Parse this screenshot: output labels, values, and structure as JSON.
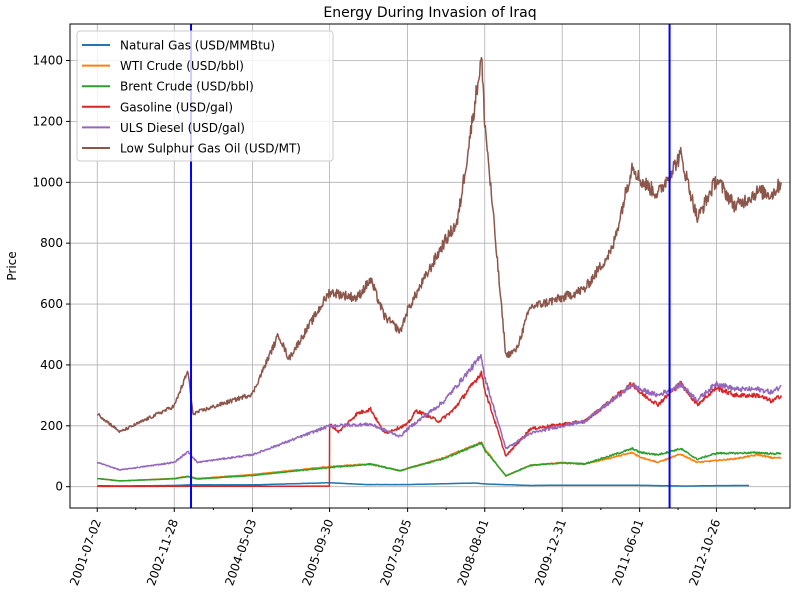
{
  "chart_data": {
    "type": "line",
    "title": "Energy During Invasion of Iraq",
    "xlabel": "",
    "ylabel": "Price",
    "ylim": [
      -70,
      1520
    ],
    "yticks": [
      0,
      200,
      400,
      600,
      800,
      1000,
      1200,
      1400
    ],
    "xdomain": [
      "2001-01-01",
      "2014-03-01"
    ],
    "xtick_labels": [
      "2001-07-02",
      "2002-11-28",
      "2004-05-03",
      "2005-09-30",
      "2007-03-05",
      "2008-08-01",
      "2009-12-31",
      "2011-06-01",
      "2012-10-26"
    ],
    "grid": true,
    "legend_position": "top-left",
    "vlines": [
      {
        "x": "2003-03-20",
        "color": "#0000ff"
      },
      {
        "x": "2011-12-18",
        "color": "#0000ff"
      }
    ],
    "series": [
      {
        "name": "Natural Gas (USD/MMBtu)",
        "color": "#1f77b4",
        "points": [
          [
            "2001-07-02",
            3
          ],
          [
            "2002-01-01",
            2.5
          ],
          [
            "2002-11-28",
            4
          ],
          [
            "2003-03-01",
            6
          ],
          [
            "2004-05-03",
            6
          ],
          [
            "2005-09-30",
            13
          ],
          [
            "2006-06-01",
            7
          ],
          [
            "2007-03-05",
            7
          ],
          [
            "2008-06-01",
            12
          ],
          [
            "2008-08-01",
            9
          ],
          [
            "2009-06-01",
            4
          ],
          [
            "2009-12-31",
            5
          ],
          [
            "2011-06-01",
            4.5
          ],
          [
            "2012-04-01",
            2
          ],
          [
            "2012-10-26",
            3.5
          ],
          [
            "2013-06-01",
            4
          ]
        ]
      },
      {
        "name": "WTI Crude (USD/bbl)",
        "color": "#ff7f0e",
        "points": [
          [
            "2001-07-02",
            27
          ],
          [
            "2001-12-01",
            19
          ],
          [
            "2002-11-28",
            27
          ],
          [
            "2003-03-01",
            35
          ],
          [
            "2003-05-01",
            27
          ],
          [
            "2004-05-03",
            40
          ],
          [
            "2005-09-30",
            66
          ],
          [
            "2006-07-01",
            75
          ],
          [
            "2007-01-15",
            52
          ],
          [
            "2007-03-05",
            60
          ],
          [
            "2007-11-01",
            95
          ],
          [
            "2008-07-10",
            145
          ],
          [
            "2008-08-01",
            125
          ],
          [
            "2008-12-20",
            35
          ],
          [
            "2009-06-01",
            70
          ],
          [
            "2009-12-31",
            79
          ],
          [
            "2010-06-01",
            75
          ],
          [
            "2011-04-15",
            112
          ],
          [
            "2011-06-01",
            98
          ],
          [
            "2011-10-01",
            80
          ],
          [
            "2012-03-01",
            107
          ],
          [
            "2012-06-20",
            80
          ],
          [
            "2012-10-26",
            86
          ],
          [
            "2013-03-01",
            92
          ],
          [
            "2013-08-01",
            105
          ],
          [
            "2013-11-01",
            95
          ],
          [
            "2014-01-01",
            95
          ]
        ]
      },
      {
        "name": "Brent Crude (USD/bbl)",
        "color": "#2ca02c",
        "points": [
          [
            "2001-07-02",
            27
          ],
          [
            "2001-12-01",
            19
          ],
          [
            "2002-11-28",
            26
          ],
          [
            "2003-03-01",
            33
          ],
          [
            "2003-05-01",
            25
          ],
          [
            "2004-05-03",
            37
          ],
          [
            "2005-09-30",
            63
          ],
          [
            "2006-07-01",
            74
          ],
          [
            "2007-01-15",
            52
          ],
          [
            "2007-03-05",
            60
          ],
          [
            "2007-11-01",
            92
          ],
          [
            "2008-07-10",
            145
          ],
          [
            "2008-08-01",
            120
          ],
          [
            "2008-12-20",
            36
          ],
          [
            "2009-06-01",
            70
          ],
          [
            "2009-12-31",
            78
          ],
          [
            "2010-06-01",
            75
          ],
          [
            "2011-04-15",
            125
          ],
          [
            "2011-06-01",
            113
          ],
          [
            "2011-10-01",
            105
          ],
          [
            "2012-03-01",
            125
          ],
          [
            "2012-06-20",
            90
          ],
          [
            "2012-10-26",
            110
          ],
          [
            "2013-03-01",
            110
          ],
          [
            "2013-08-01",
            112
          ],
          [
            "2013-11-01",
            108
          ],
          [
            "2014-01-01",
            110
          ]
        ]
      },
      {
        "name": "Gasoline (USD/gal)",
        "color": "#d62728",
        "points": [
          [
            "2001-07-02",
            1
          ],
          [
            "2003-03-01",
            1.2
          ],
          [
            "2004-05-03",
            1.3
          ],
          [
            "2005-09-29",
            2
          ],
          [
            "2005-09-30",
            205
          ],
          [
            "2005-12-01",
            180
          ],
          [
            "2006-04-01",
            240
          ],
          [
            "2006-07-01",
            255
          ],
          [
            "2006-10-01",
            175
          ],
          [
            "2007-03-05",
            205
          ],
          [
            "2007-05-01",
            250
          ],
          [
            "2007-10-01",
            215
          ],
          [
            "2008-01-01",
            250
          ],
          [
            "2008-07-10",
            375
          ],
          [
            "2008-08-01",
            320
          ],
          [
            "2008-12-20",
            100
          ],
          [
            "2009-06-01",
            190
          ],
          [
            "2009-12-31",
            205
          ],
          [
            "2010-06-01",
            215
          ],
          [
            "2011-04-15",
            340
          ],
          [
            "2011-06-01",
            310
          ],
          [
            "2011-10-01",
            270
          ],
          [
            "2012-03-01",
            340
          ],
          [
            "2012-06-20",
            270
          ],
          [
            "2012-10-26",
            325
          ],
          [
            "2013-03-01",
            300
          ],
          [
            "2013-08-01",
            300
          ],
          [
            "2013-11-01",
            280
          ],
          [
            "2014-01-01",
            300
          ]
        ]
      },
      {
        "name": "ULS Diesel (USD/gal)",
        "color": "#9467bd",
        "points": [
          [
            "2001-07-02",
            80
          ],
          [
            "2001-12-01",
            55
          ],
          [
            "2002-11-28",
            80
          ],
          [
            "2003-03-01",
            115
          ],
          [
            "2003-05-01",
            80
          ],
          [
            "2004-05-03",
            105
          ],
          [
            "2005-09-30",
            200
          ],
          [
            "2006-07-01",
            205
          ],
          [
            "2007-01-15",
            165
          ],
          [
            "2007-03-05",
            190
          ],
          [
            "2007-11-01",
            280
          ],
          [
            "2008-07-10",
            430
          ],
          [
            "2008-08-01",
            360
          ],
          [
            "2008-12-20",
            125
          ],
          [
            "2009-06-01",
            175
          ],
          [
            "2009-12-31",
            200
          ],
          [
            "2010-06-01",
            215
          ],
          [
            "2011-04-15",
            335
          ],
          [
            "2011-06-01",
            320
          ],
          [
            "2011-10-01",
            300
          ],
          [
            "2012-03-01",
            335
          ],
          [
            "2012-06-20",
            285
          ],
          [
            "2012-10-26",
            340
          ],
          [
            "2013-03-01",
            320
          ],
          [
            "2013-08-01",
            320
          ],
          [
            "2013-11-01",
            310
          ],
          [
            "2014-01-01",
            330
          ]
        ]
      },
      {
        "name": "Low Sulphur Gas Oil (USD/MT)",
        "color": "#8c564b",
        "points": [
          [
            "2001-07-02",
            240
          ],
          [
            "2001-12-01",
            180
          ],
          [
            "2002-11-28",
            265
          ],
          [
            "2003-02-28",
            380
          ],
          [
            "2003-04-01",
            240
          ],
          [
            "2004-05-03",
            305
          ],
          [
            "2004-10-25",
            500
          ],
          [
            "2005-01-01",
            420
          ],
          [
            "2005-09-30",
            640
          ],
          [
            "2006-04-01",
            620
          ],
          [
            "2006-07-01",
            680
          ],
          [
            "2006-10-01",
            560
          ],
          [
            "2007-01-15",
            510
          ],
          [
            "2007-03-05",
            580
          ],
          [
            "2007-11-01",
            800
          ],
          [
            "2008-02-01",
            870
          ],
          [
            "2008-07-10",
            1410
          ],
          [
            "2008-08-01",
            1200
          ],
          [
            "2008-12-20",
            430
          ],
          [
            "2009-03-01",
            450
          ],
          [
            "2009-06-01",
            590
          ],
          [
            "2009-12-31",
            620
          ],
          [
            "2010-06-01",
            650
          ],
          [
            "2010-12-01",
            780
          ],
          [
            "2011-04-15",
            1060
          ],
          [
            "2011-06-01",
            1010
          ],
          [
            "2011-10-01",
            960
          ],
          [
            "2012-03-01",
            1090
          ],
          [
            "2012-06-20",
            880
          ],
          [
            "2012-10-26",
            1010
          ],
          [
            "2013-03-01",
            920
          ],
          [
            "2013-08-01",
            970
          ],
          [
            "2013-11-01",
            960
          ],
          [
            "2014-01-01",
            1000
          ]
        ]
      }
    ]
  }
}
